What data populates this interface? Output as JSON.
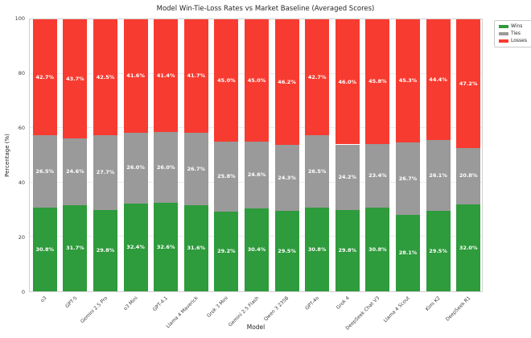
{
  "title": "Model Win-Tie-Loss Rates vs Market Baseline (Averaged Scores)",
  "xlabel": "Model",
  "ylabel": "Percentage (%)",
  "colors": {
    "wins": "#2e9b3c",
    "ties": "#9a9a9a",
    "losses": "#f83b30",
    "grid": "#ececec",
    "spine": "#cfcfcf"
  },
  "legend": {
    "position": "outside-top-right",
    "items": [
      {
        "label": "Wins",
        "color": "#2e9b3c"
      },
      {
        "label": "Ties",
        "color": "#9a9a9a"
      },
      {
        "label": "Losses",
        "color": "#f83b30"
      }
    ]
  },
  "chart_data": {
    "type": "bar",
    "stacked": true,
    "orientation": "vertical",
    "title": "Model Win-Tie-Loss Rates vs Market Baseline (Averaged Scores)",
    "xlabel": "Model",
    "ylabel": "Percentage (%)",
    "ylim": [
      0,
      100
    ],
    "yticks": [
      0,
      20,
      40,
      60,
      80,
      100
    ],
    "grid": true,
    "bar_width_fraction": 0.8,
    "value_label_format": "{value}%",
    "categories": [
      "o3",
      "GPT-5",
      "Gemini 2.5 Pro",
      "o3 Mini",
      "GPT-4.1",
      "Llama 4 Maverick",
      "Grok 3 Mini",
      "Gemini 2.5 Flash",
      "Qwen 3 235B",
      "GPT-4o",
      "Grok 4",
      "DeepSeek Chat V3",
      "Llama 4 Scout",
      "Kimi K2",
      "DeepSeek R1"
    ],
    "series": [
      {
        "name": "Wins",
        "color": "#2e9b3c",
        "values": [
          30.8,
          31.7,
          29.8,
          32.4,
          32.6,
          31.6,
          29.2,
          30.4,
          29.5,
          30.8,
          29.8,
          30.8,
          28.1,
          29.5,
          32.0
        ]
      },
      {
        "name": "Ties",
        "color": "#9a9a9a",
        "values": [
          26.5,
          24.6,
          27.7,
          26.0,
          26.0,
          26.7,
          25.8,
          24.6,
          24.3,
          26.5,
          24.2,
          23.4,
          26.7,
          26.1,
          20.8
        ]
      },
      {
        "name": "Losses",
        "color": "#f83b30",
        "values": [
          42.7,
          43.7,
          42.5,
          41.6,
          41.4,
          41.7,
          45.0,
          45.0,
          46.2,
          42.7,
          46.0,
          45.8,
          45.3,
          44.4,
          47.2
        ]
      }
    ]
  }
}
